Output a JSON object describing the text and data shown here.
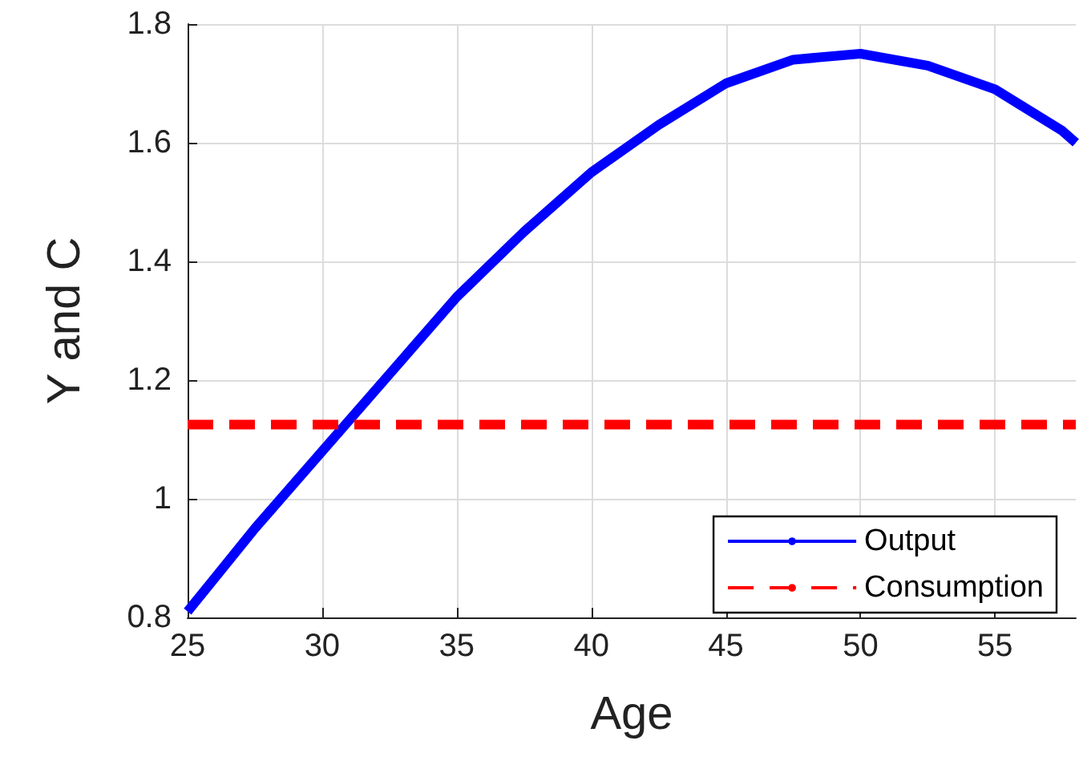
{
  "chart_data": {
    "type": "line",
    "xlabel": "Age",
    "ylabel": "Y and C",
    "xlim": [
      25,
      58
    ],
    "xticks": [
      25,
      30,
      35,
      40,
      45,
      50,
      55
    ],
    "ylim": [
      0.8,
      1.8
    ],
    "yticks": [
      0.8,
      1,
      1.2,
      1.4,
      1.6,
      1.8
    ],
    "grid": true,
    "legend": "bottom right",
    "marker": "none",
    "series": [
      {
        "name": "Output",
        "color": "#0000ff",
        "line_style": "solid",
        "x": [
          25,
          27.5,
          30,
          32.5,
          35,
          37.5,
          40,
          42.5,
          45,
          47.5,
          50,
          52.5,
          55,
          57.5,
          58
        ],
        "values": [
          0.81,
          0.95,
          1.08,
          1.21,
          1.34,
          1.45,
          1.55,
          1.63,
          1.7,
          1.74,
          1.75,
          1.73,
          1.69,
          1.62,
          1.6
        ]
      },
      {
        "name": "Consumption",
        "color": "#ff0000",
        "line_style": "dashed",
        "x": [
          25,
          58
        ],
        "values": [
          1.125,
          1.125
        ]
      }
    ]
  }
}
